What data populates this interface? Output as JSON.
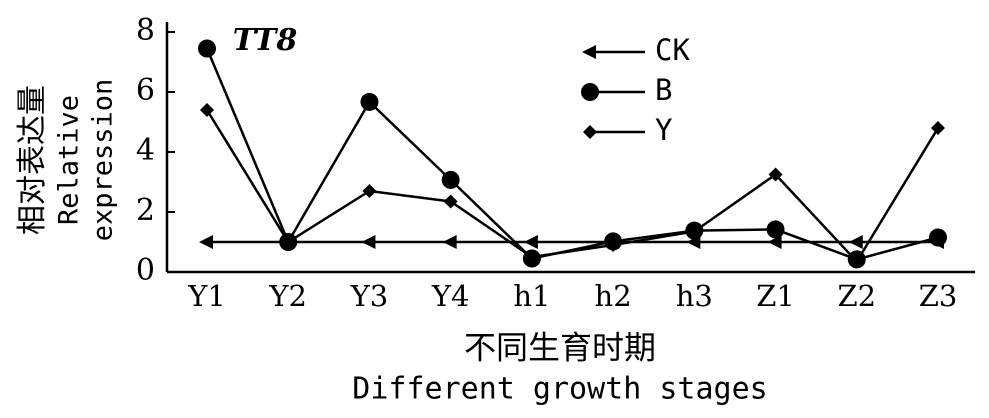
{
  "chart_data": {
    "type": "line",
    "title": "TT8",
    "y_label": [
      "相对表达量",
      "Relative",
      "expression"
    ],
    "x_label": [
      "不同生育时期",
      "Different growth stages"
    ],
    "categories": [
      "Y1",
      "Y2",
      "Y3",
      "Y4",
      "h1",
      "h2",
      "h3",
      "Z1",
      "Z2",
      "Z3"
    ],
    "series": [
      {
        "name": "CK",
        "color": "#000000",
        "marker": "arrow",
        "values": [
          1,
          1,
          1,
          1,
          1,
          1,
          1,
          1,
          1,
          1
        ]
      },
      {
        "name": "B",
        "color": "#000000",
        "marker": "circle",
        "values": [
          7.45,
          1.0,
          5.67,
          3.07,
          0.45,
          1.02,
          1.38,
          1.42,
          0.42,
          1.15
        ]
      },
      {
        "name": "Y",
        "color": "#000000",
        "marker": "diamond",
        "values": [
          5.4,
          1.0,
          2.7,
          2.35,
          0.5,
          0.9,
          1.35,
          3.25,
          0.35,
          4.8
        ]
      }
    ],
    "ylim": [
      0,
      8
    ],
    "yticks": [
      0,
      2,
      4,
      6,
      8
    ],
    "grid": false,
    "legend": "top-right"
  }
}
